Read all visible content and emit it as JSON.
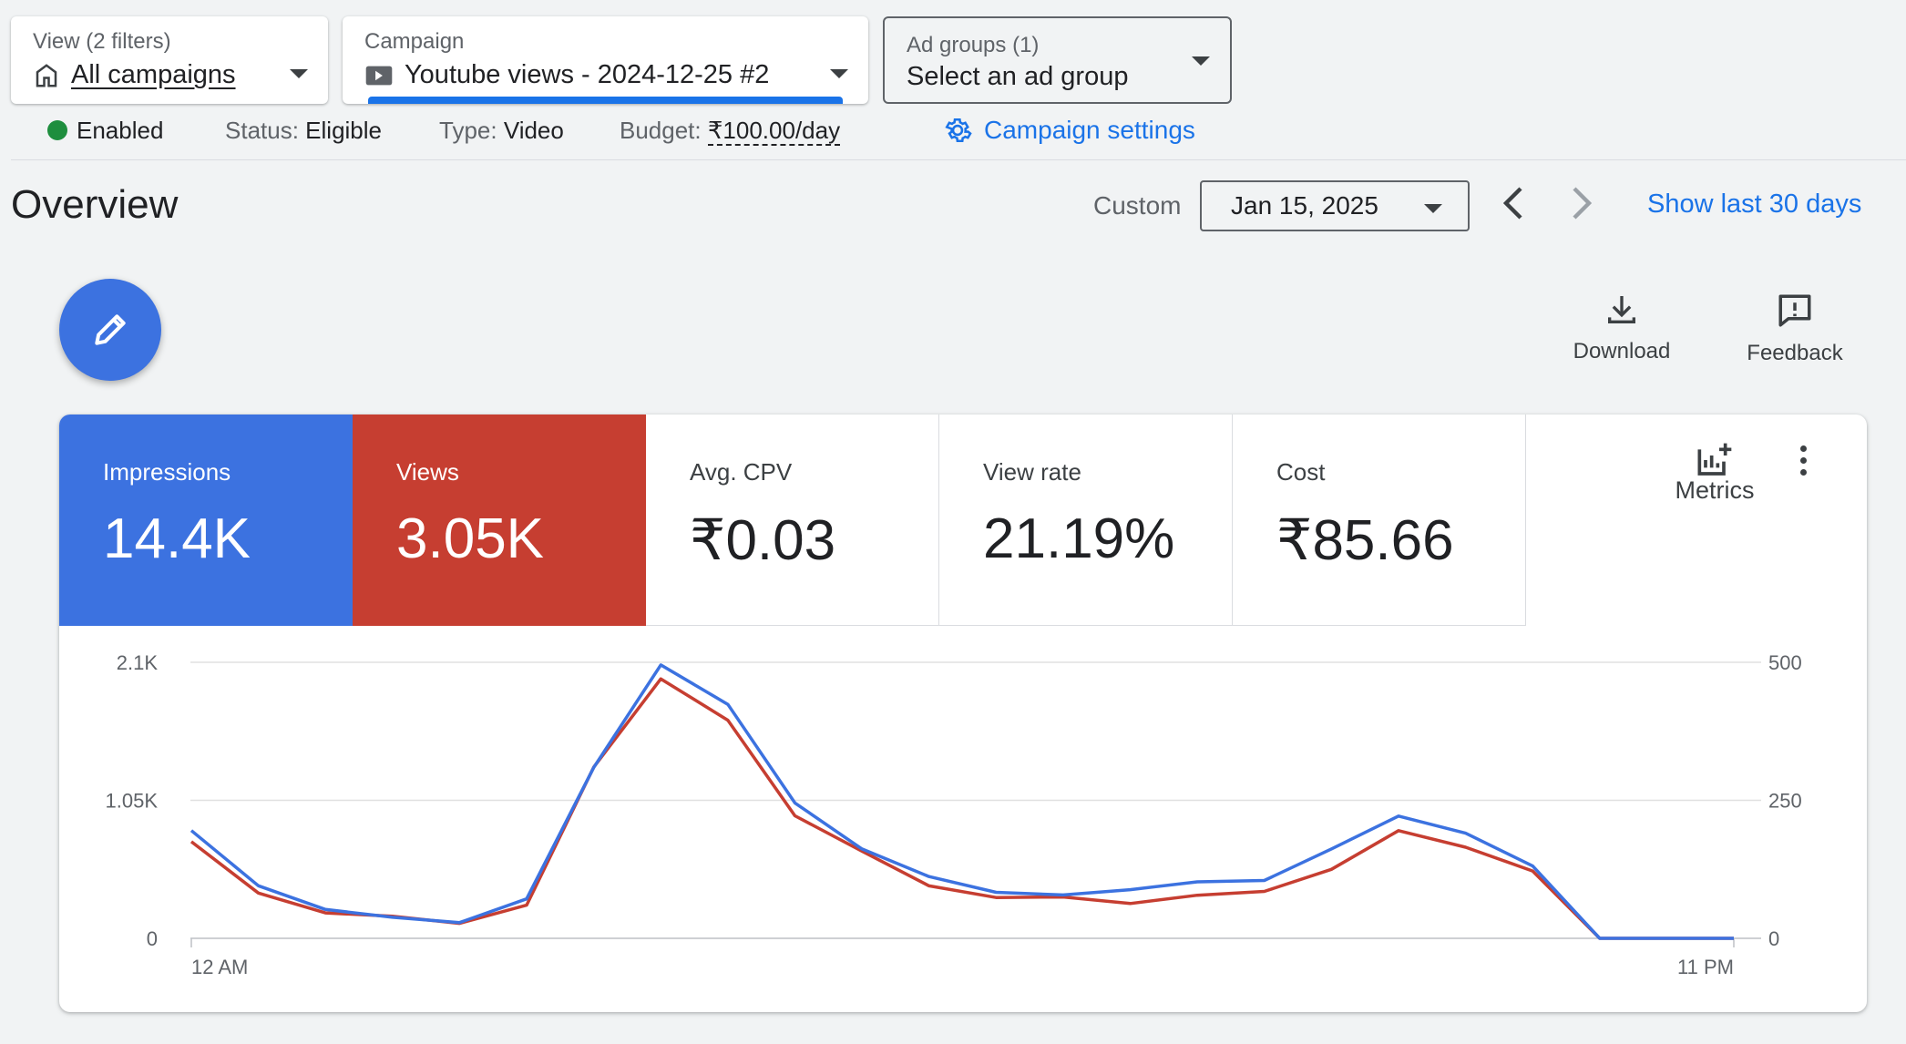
{
  "header": {
    "view_selector": {
      "label": "View (2 filters)",
      "value": "All campaigns",
      "icon": "home-icon"
    },
    "campaign_selector": {
      "label": "Campaign",
      "value": "Youtube views - 2024-12-25 #2",
      "icon": "video-icon"
    },
    "adgroup_selector": {
      "label": "Ad groups (1)",
      "value": "Select an ad group"
    }
  },
  "status": {
    "enabled": "Enabled",
    "status_label": "Status:",
    "status_value": "Eligible",
    "type_label": "Type:",
    "type_value": "Video",
    "budget_label": "Budget:",
    "budget_value": "₹100.00/day",
    "settings_link": "Campaign settings"
  },
  "overview": {
    "title": "Overview",
    "range_label": "Custom",
    "date_value": "Jan 15, 2025",
    "show_last": "Show last 30 days"
  },
  "toolbar": {
    "download": "Download",
    "feedback": "Feedback",
    "metrics": "Metrics"
  },
  "metrics": [
    {
      "label": "Impressions",
      "value": "14.4K",
      "color": "#3c72e0"
    },
    {
      "label": "Views",
      "value": "3.05K",
      "color": "#c63e31"
    },
    {
      "label": "Avg. CPV",
      "value": "₹0.03"
    },
    {
      "label": "View rate",
      "value": "21.19%"
    },
    {
      "label": "Cost",
      "value": "₹85.66"
    }
  ],
  "chart_data": {
    "type": "line",
    "x": [
      0,
      1,
      2,
      3,
      4,
      5,
      6,
      7,
      8,
      9,
      10,
      11,
      12,
      13,
      14,
      15,
      16,
      17,
      18,
      19,
      20,
      21,
      22,
      23
    ],
    "x_tick_labels": [
      "12 AM",
      "11 PM"
    ],
    "left_axis": {
      "ticks": [
        "0",
        "1.05K",
        "2.1K"
      ],
      "ylim": [
        0,
        2100
      ]
    },
    "right_axis": {
      "ticks": [
        "0",
        "250",
        "500"
      ],
      "ylim": [
        0,
        500
      ]
    },
    "series": [
      {
        "name": "Impressions",
        "color": "#3c72e0",
        "axis": "left",
        "values": [
          820,
          400,
          220,
          160,
          120,
          300,
          1300,
          2080,
          1780,
          1030,
          680,
          470,
          350,
          330,
          370,
          430,
          440,
          680,
          930,
          800,
          550,
          0,
          0,
          0
        ]
      },
      {
        "name": "Views",
        "color": "#c63e31",
        "axis": "right",
        "values": [
          175,
          82,
          46,
          40,
          27,
          60,
          310,
          470,
          395,
          222,
          158,
          95,
          74,
          75,
          63,
          78,
          85,
          125,
          195,
          165,
          122,
          0,
          0,
          0
        ]
      }
    ],
    "grid": true
  }
}
